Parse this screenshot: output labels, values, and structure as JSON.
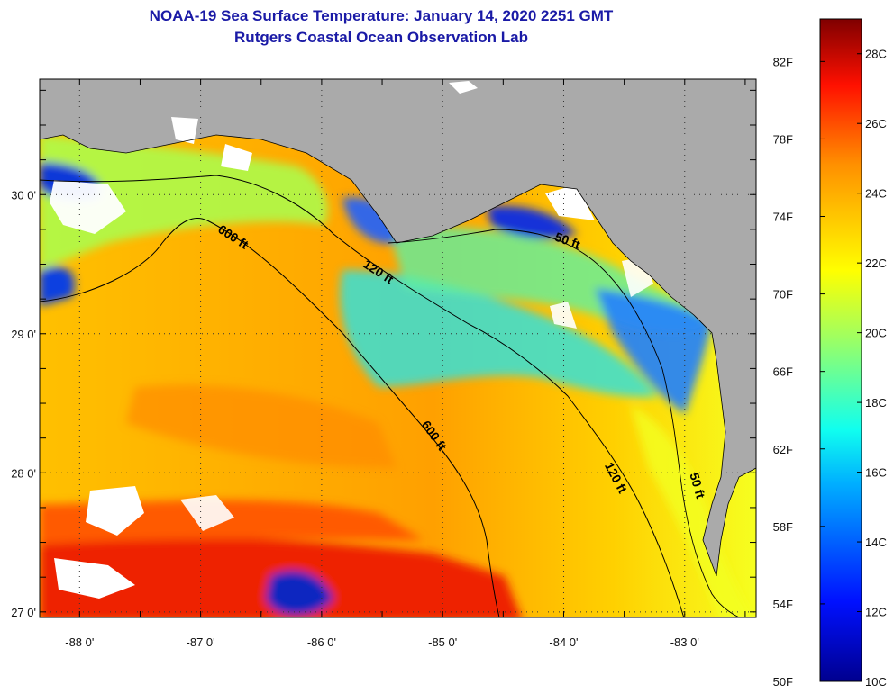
{
  "title": {
    "line1": "NOAA-19 Sea Surface Temperature:  January 14, 2020 2251 GMT",
    "line2": "Rutgers Coastal Ocean Observation Lab"
  },
  "map": {
    "lon_range": [
      -88.33,
      -82.41
    ],
    "lat_range": [
      26.96,
      30.83
    ],
    "lon_ticks": [
      {
        "value": -88,
        "label": "-88 0'"
      },
      {
        "value": -87,
        "label": "-87 0'"
      },
      {
        "value": -86,
        "label": "-86 0'"
      },
      {
        "value": -85,
        "label": "-85 0'"
      },
      {
        "value": -84,
        "label": "-84 0'"
      },
      {
        "value": -83,
        "label": "-83 0'"
      }
    ],
    "lat_ticks": [
      {
        "value": 27,
        "label": "27 0'"
      },
      {
        "value": 28,
        "label": "28 0'"
      },
      {
        "value": 29,
        "label": "29 0'"
      },
      {
        "value": 30,
        "label": "30 0'"
      }
    ],
    "grid": "dotted",
    "land_color": "#aaaaaa",
    "cloud_color": "#ffffff",
    "contour_labels": [
      {
        "text": "600 ft",
        "lon": -86.75,
        "lat": 29.67,
        "angle": 33
      },
      {
        "text": "120 ft",
        "lon": -85.55,
        "lat": 29.42,
        "angle": 33
      },
      {
        "text": "50 ft",
        "lon": -83.98,
        "lat": 29.64,
        "angle": 20
      },
      {
        "text": "600 ft",
        "lon": -85.1,
        "lat": 28.25,
        "angle": 55
      },
      {
        "text": "120 ft",
        "lon": -83.6,
        "lat": 27.95,
        "angle": 62
      },
      {
        "text": "50 ft",
        "lon": -82.93,
        "lat": 27.9,
        "angle": 74
      }
    ]
  },
  "colorbar": {
    "min_c": 10,
    "max_c": 29,
    "fahrenheit_labels": [
      "82F",
      "78F",
      "74F",
      "70F",
      "66F",
      "62F",
      "58F",
      "54F",
      "50F"
    ],
    "celsius_labels": [
      "28C",
      "26C",
      "24C",
      "22C",
      "20C",
      "18C",
      "16C",
      "14C",
      "12C",
      "10C"
    ]
  }
}
